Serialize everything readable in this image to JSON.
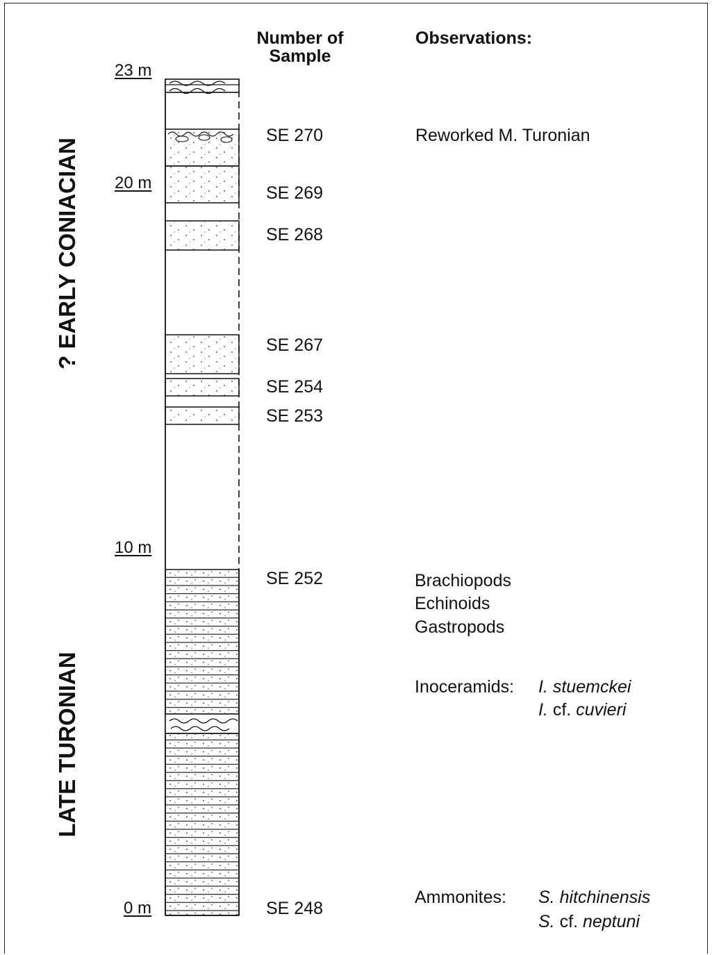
{
  "headers": {
    "sample_line1": "Number of",
    "sample_line2": "Sample",
    "observations": "Observations:"
  },
  "stages": {
    "upper": "? EARLY CONIACIAN",
    "lower": "LATE TURONIAN"
  },
  "depth_labels": [
    "23 m",
    "20 m",
    "10 m",
    "0 m"
  ],
  "samples": [
    "SE 270",
    "SE 269",
    "SE 268",
    "SE 267",
    "SE 254",
    "SE 253",
    "SE 252",
    "SE 248"
  ],
  "observations": {
    "reworked": "Reworked  M. Turonian",
    "fauna": [
      "Brachiopods",
      "Echinoids",
      "Gastropods"
    ],
    "inoceramids_label": "Inoceramids:",
    "inoceramids_species_1_genus": "I.",
    "inoceramids_species_1_name": "stuemckei",
    "inoceramids_species_2_genus": "I.",
    "inoceramids_species_2_cf": "cf.",
    "inoceramids_species_2_name": "cuvieri",
    "ammonites_label": "Ammonites:",
    "ammonites_species_1": "S. hitchinensis",
    "ammonites_species_2_genus": "S.",
    "ammonites_species_2_cf": "cf.",
    "ammonites_species_2_name": "neptuni"
  }
}
